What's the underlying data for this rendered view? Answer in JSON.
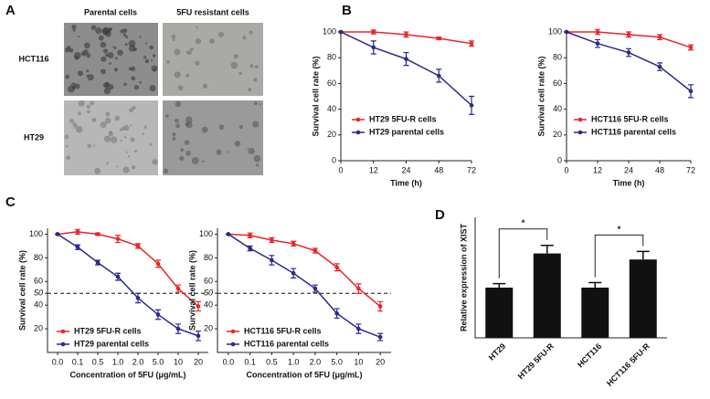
{
  "figure_a": {
    "panel": "A",
    "columns": [
      "Parental cells",
      "5FU resistant cells"
    ],
    "rows": [
      "HCT116",
      "HT29"
    ]
  },
  "chart_data": [
    {
      "type": "line",
      "panel": "B",
      "xlabel": "Time (h)",
      "ylabel": "Survival cell rate (%)",
      "categories": [
        "0",
        "12",
        "24",
        "48",
        "72"
      ],
      "ylim": [
        0,
        100
      ],
      "yticks": [
        0,
        20,
        40,
        60,
        80,
        100
      ],
      "series": [
        {
          "name": "HT29 5FU-R cells",
          "color": "#e8252b",
          "values": [
            100,
            100,
            98,
            95,
            91
          ],
          "errors": [
            0,
            1.5,
            2,
            1,
            2
          ]
        },
        {
          "name": "HT29 parental cells",
          "color": "#2a2a8c",
          "values": [
            100,
            88,
            79,
            66,
            43
          ],
          "errors": [
            0,
            5,
            5,
            5,
            7
          ]
        }
      ]
    },
    {
      "type": "line",
      "panel": null,
      "xlabel": "Time (h)",
      "ylabel": "Survival cell rate (%)",
      "categories": [
        "0",
        "12",
        "24",
        "48",
        "72"
      ],
      "ylim": [
        0,
        100
      ],
      "yticks": [
        0,
        20,
        40,
        60,
        80,
        100
      ],
      "series": [
        {
          "name": "HCT116 5FU-R cells",
          "color": "#e8252b",
          "values": [
            100,
            100,
            98,
            96,
            88
          ],
          "errors": [
            0,
            2,
            2,
            2,
            2
          ]
        },
        {
          "name": "HCT116 parental cells",
          "color": "#2a2a8c",
          "values": [
            100,
            91,
            84,
            73,
            54
          ],
          "errors": [
            0,
            3,
            3,
            3,
            5
          ]
        }
      ]
    },
    {
      "type": "line",
      "panel": "C",
      "xlabel": "Concentration of 5FU (μg/mL)",
      "ylabel": "Survival cell rate (%)",
      "categories": [
        "0.0",
        "0.1",
        "0.5",
        "1.0",
        "2.0",
        "5.0",
        "10",
        "20"
      ],
      "ylim": [
        0,
        105
      ],
      "yticks": [
        20,
        40,
        50,
        60,
        80,
        100
      ],
      "reference_line": 50,
      "series": [
        {
          "name": "HT29 5FU-R cells",
          "color": "#e8252b",
          "values": [
            100,
            102,
            100,
            96,
            90,
            75,
            54,
            39
          ],
          "errors": [
            0,
            2,
            1,
            3,
            2,
            3,
            3,
            4
          ]
        },
        {
          "name": "HT29 parental cells",
          "color": "#2a2a8c",
          "values": [
            100,
            89,
            76,
            64,
            46,
            32,
            20,
            14
          ],
          "errors": [
            0,
            2,
            2,
            3,
            4,
            4,
            4,
            4
          ]
        }
      ]
    },
    {
      "type": "line",
      "panel": null,
      "xlabel": "Concentration of 5FU (μg/mL)",
      "ylabel": "Survival cell rate (%)",
      "categories": [
        "0.0",
        "0.1",
        "0.5",
        "1.0",
        "2.0",
        "5.0",
        "10",
        "20"
      ],
      "ylim": [
        0,
        105
      ],
      "yticks": [
        20,
        40,
        50,
        60,
        80,
        100
      ],
      "reference_line": 50,
      "series": [
        {
          "name": "HCT116 5FU-R cells",
          "color": "#e8252b",
          "values": [
            100,
            99,
            95,
            92,
            86,
            72,
            54,
            39
          ],
          "errors": [
            0,
            2,
            2,
            2,
            2,
            3,
            4,
            4
          ]
        },
        {
          "name": "HCT116 parental cells",
          "color": "#2a2a8c",
          "values": [
            100,
            88,
            78,
            67,
            54,
            33,
            20,
            13
          ],
          "errors": [
            0,
            2,
            4,
            4,
            3,
            4,
            4,
            3
          ]
        }
      ]
    },
    {
      "type": "bar",
      "panel": "D",
      "ylabel": "Relative expression of XIST",
      "categories": [
        "HT29",
        "HT29 5FU-R",
        "HCT116",
        "HCT116 5FU-R"
      ],
      "values": [
        1.0,
        1.68,
        1.0,
        1.56
      ],
      "errors": [
        0.08,
        0.16,
        0.1,
        0.16
      ],
      "color": "#111111",
      "ylim": [
        0,
        2.4
      ],
      "annotations": [
        "*",
        "*"
      ]
    }
  ]
}
